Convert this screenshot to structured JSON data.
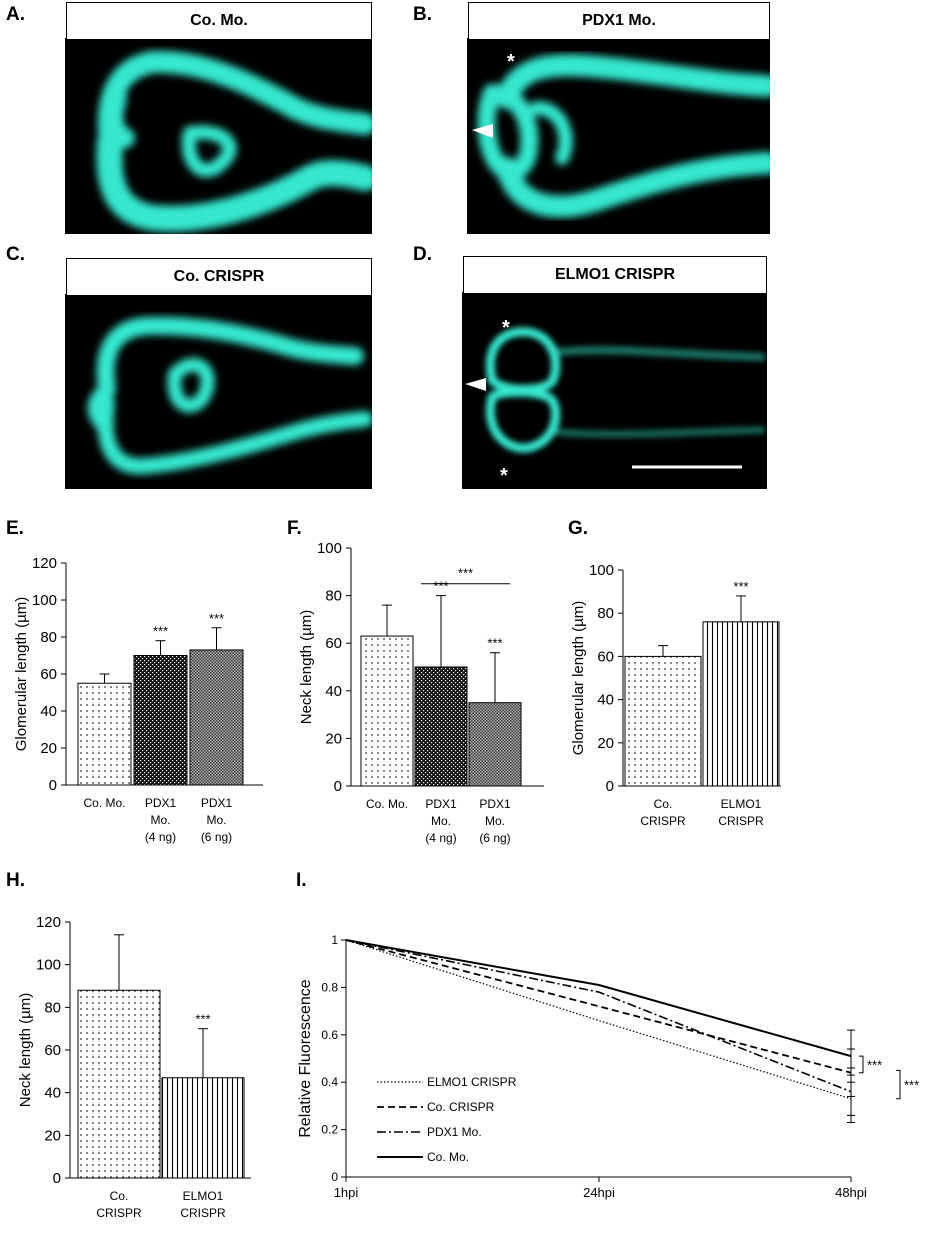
{
  "panels": {
    "A": {
      "label": "A.",
      "title": "Co. Mo."
    },
    "B": {
      "label": "B.",
      "title": "PDX1 Mo."
    },
    "C": {
      "label": "C.",
      "title": "Co. CRISPR"
    },
    "D": {
      "label": "D.",
      "title": "ELMO1 CRISPR"
    },
    "E": {
      "label": "E."
    },
    "F": {
      "label": "F."
    },
    "G": {
      "label": "G."
    },
    "H": {
      "label": "H."
    },
    "I": {
      "label": "I."
    }
  },
  "colors": {
    "fluorescence": "#35e8cf",
    "background": "#000000"
  },
  "chart_data": [
    {
      "id": "E",
      "type": "bar",
      "ylabel": "Glomerular length (µm)",
      "ylim": [
        0,
        120
      ],
      "yticks": [
        0,
        20,
        40,
        60,
        80,
        100,
        120
      ],
      "categories": [
        [
          "Co. Mo."
        ],
        [
          "PDX1",
          "Mo.",
          "(4 ng)"
        ],
        [
          "PDX1",
          "Mo.",
          "(6 ng)"
        ]
      ],
      "values": [
        55,
        70,
        73
      ],
      "errors": [
        5,
        8,
        12
      ],
      "significance": [
        "",
        "***",
        "***"
      ]
    },
    {
      "id": "F",
      "type": "bar",
      "ylabel": "Neck length (µm)",
      "ylim": [
        0,
        100
      ],
      "yticks": [
        0,
        20,
        40,
        60,
        80,
        100
      ],
      "categories": [
        [
          "Co. Mo."
        ],
        [
          "PDX1",
          "Mo.",
          "(4 ng)"
        ],
        [
          "PDX1",
          "Mo.",
          "(6 ng)"
        ]
      ],
      "values": [
        63,
        50,
        35
      ],
      "errors": [
        13,
        30,
        21
      ],
      "significance": [
        "",
        "***",
        "***"
      ],
      "bracket_label": "***"
    },
    {
      "id": "G",
      "type": "bar",
      "ylabel": "Glomerular length (µm)",
      "ylim": [
        0,
        100
      ],
      "yticks": [
        0,
        20,
        40,
        60,
        80,
        100
      ],
      "categories": [
        [
          "Co.",
          "CRISPR"
        ],
        [
          "ELMO1",
          "CRISPR"
        ]
      ],
      "values": [
        60,
        76
      ],
      "errors": [
        5,
        12
      ],
      "significance": [
        "",
        "***"
      ]
    },
    {
      "id": "H",
      "type": "bar",
      "ylabel": "Neck length (µm)",
      "ylim": [
        0,
        120
      ],
      "yticks": [
        0,
        20,
        40,
        60,
        80,
        100,
        120
      ],
      "categories": [
        [
          "Co.",
          "CRISPR"
        ],
        [
          "ELMO1",
          "CRISPR"
        ]
      ],
      "values": [
        88,
        47
      ],
      "errors": [
        26,
        23
      ],
      "significance": [
        "",
        "***"
      ]
    },
    {
      "id": "I",
      "type": "line",
      "ylabel": "Relative Fluorescence",
      "ylim": [
        0,
        1
      ],
      "yticks": [
        "0",
        "0.2",
        "0.4",
        "0.6",
        "0.8",
        "1"
      ],
      "x": [
        "1hpi",
        "24hpi",
        "48hpi"
      ],
      "series": [
        {
          "name": "ELMO1 CRISPR",
          "values": [
            1,
            0.66,
            0.33
          ],
          "error": 0.1
        },
        {
          "name": "Co. CRISPR",
          "values": [
            1,
            0.72,
            0.44
          ],
          "error": 0.1
        },
        {
          "name": "PDX1 Mo.",
          "values": [
            1,
            0.78,
            0.36
          ],
          "error": 0.1
        },
        {
          "name": "Co. Mo.",
          "values": [
            1,
            0.81,
            0.51
          ],
          "error": 0.11
        }
      ],
      "significance": [
        "***",
        "***"
      ]
    }
  ]
}
